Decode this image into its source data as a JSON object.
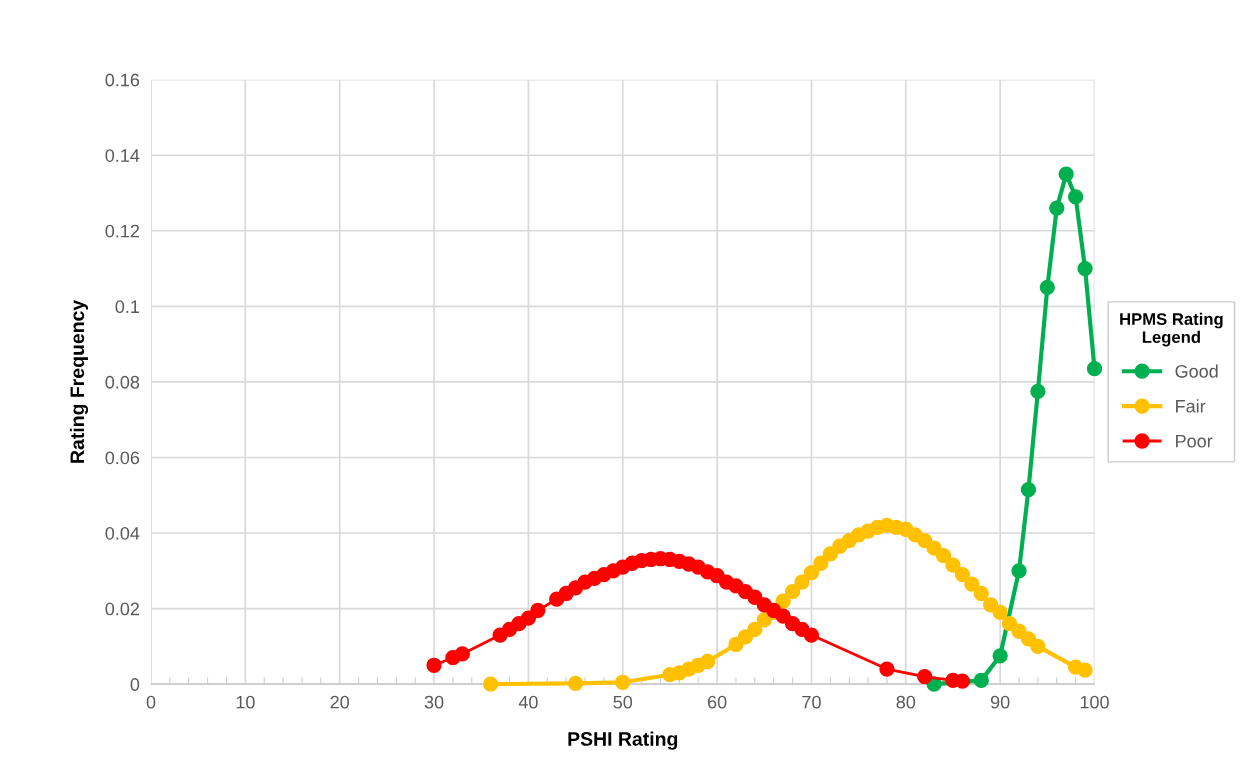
{
  "chart_data": {
    "type": "line",
    "xlabel": "PSHI Rating",
    "ylabel": "Rating Frequency",
    "legend_title": "HPMS Rating Legend",
    "legend": "right",
    "grid": true,
    "marker": "circle",
    "line_style": "solid",
    "xlim": [
      0,
      100
    ],
    "ylim": [
      0,
      0.16
    ],
    "xticks": [
      0,
      {
        "value": 2,
        "label": null
      },
      {
        "value": 4,
        "label": null
      },
      {
        "value": 6,
        "label": null
      },
      {
        "value": 8,
        "label": null
      },
      10,
      {
        "value": 12,
        "label": null
      },
      {
        "value": 14,
        "label": null
      },
      {
        "value": 16,
        "label": null
      },
      {
        "value": 18,
        "label": null
      },
      20,
      {
        "value": 22,
        "label": null
      },
      {
        "value": 24,
        "label": null
      },
      {
        "value": 26,
        "label": null
      },
      {
        "value": 28,
        "label": null
      },
      30,
      {
        "value": 32,
        "label": null
      },
      {
        "value": 34,
        "label": null
      },
      {
        "value": 36,
        "label": null
      },
      {
        "value": 38,
        "label": null
      },
      40,
      {
        "value": 42,
        "label": null
      },
      {
        "value": 44,
        "label": null
      },
      {
        "value": 46,
        "label": null
      },
      {
        "value": 48,
        "label": null
      },
      50,
      {
        "value": 52,
        "label": null
      },
      {
        "value": 54,
        "label": null
      },
      {
        "value": 56,
        "label": null
      },
      {
        "value": 58,
        "label": null
      },
      60,
      {
        "value": 62,
        "label": null
      },
      {
        "value": 64,
        "label": null
      },
      {
        "value": 66,
        "label": null
      },
      {
        "value": 68,
        "label": null
      },
      70,
      {
        "value": 72,
        "label": null
      },
      {
        "value": 74,
        "label": null
      },
      {
        "value": 76,
        "label": null
      },
      {
        "value": 78,
        "label": null
      },
      80,
      {
        "value": 82,
        "label": null
      },
      {
        "value": 84,
        "label": null
      },
      {
        "value": 86,
        "label": null
      },
      {
        "value": 88,
        "label": null
      },
      90,
      {
        "value": 92,
        "label": null
      },
      {
        "value": 94,
        "label": null
      },
      {
        "value": 96,
        "label": null
      },
      {
        "value": 98,
        "label": null
      },
      100
    ],
    "yticks": [
      0,
      0.02,
      0.04,
      0.06,
      0.08,
      0.1,
      0.12,
      0.14,
      0.16
    ],
    "series": [
      {
        "name": "Good",
        "color": "#00b050",
        "x": [
          83,
          88,
          90,
          92,
          93,
          94,
          95,
          96,
          97,
          98,
          99,
          100
        ],
        "values": [
          0,
          0.001,
          0.0075,
          0.03,
          0.0515,
          0.0775,
          0.105,
          0.126,
          0.135,
          0.129,
          0.11,
          0.0835
        ]
      },
      {
        "name": "Fair",
        "color": "#ffc000",
        "x": [
          36,
          45,
          50,
          55,
          56,
          57,
          58,
          59,
          62,
          63,
          64,
          65,
          66,
          67,
          68,
          69,
          70,
          71,
          72,
          73,
          74,
          75,
          76,
          77,
          78,
          79,
          80,
          81,
          82,
          83,
          84,
          85,
          86,
          87,
          88,
          89,
          90,
          91,
          92,
          93,
          94,
          98,
          99
        ],
        "values": [
          0,
          0.0002,
          0.0005,
          0.0025,
          0.003,
          0.004,
          0.005,
          0.006,
          0.0105,
          0.0125,
          0.0145,
          0.017,
          0.019,
          0.022,
          0.0245,
          0.027,
          0.0295,
          0.032,
          0.0345,
          0.0365,
          0.038,
          0.0395,
          0.0405,
          0.0415,
          0.042,
          0.0415,
          0.041,
          0.0395,
          0.038,
          0.036,
          0.034,
          0.0315,
          0.029,
          0.0265,
          0.024,
          0.021,
          0.019,
          0.016,
          0.014,
          0.012,
          0.01,
          0.0045,
          0.0037
        ]
      },
      {
        "name": "Poor",
        "color": "#ff0000",
        "x": [
          30,
          32,
          33,
          37,
          38,
          39,
          40,
          41,
          43,
          44,
          45,
          46,
          47,
          48,
          49,
          50,
          51,
          52,
          53,
          54,
          55,
          56,
          57,
          58,
          59,
          60,
          61,
          62,
          63,
          64,
          65,
          66,
          67,
          68,
          69,
          70,
          78,
          82,
          85,
          86
        ],
        "values": [
          0.005,
          0.007,
          0.008,
          0.013,
          0.0145,
          0.016,
          0.0175,
          0.0195,
          0.0225,
          0.024,
          0.0255,
          0.027,
          0.028,
          0.029,
          0.03,
          0.031,
          0.032,
          0.0327,
          0.033,
          0.0332,
          0.033,
          0.0325,
          0.0318,
          0.031,
          0.0297,
          0.0287,
          0.027,
          0.026,
          0.0245,
          0.023,
          0.021,
          0.0195,
          0.018,
          0.016,
          0.0145,
          0.013,
          0.004,
          0.002,
          0.001,
          0.0008
        ]
      }
    ]
  }
}
